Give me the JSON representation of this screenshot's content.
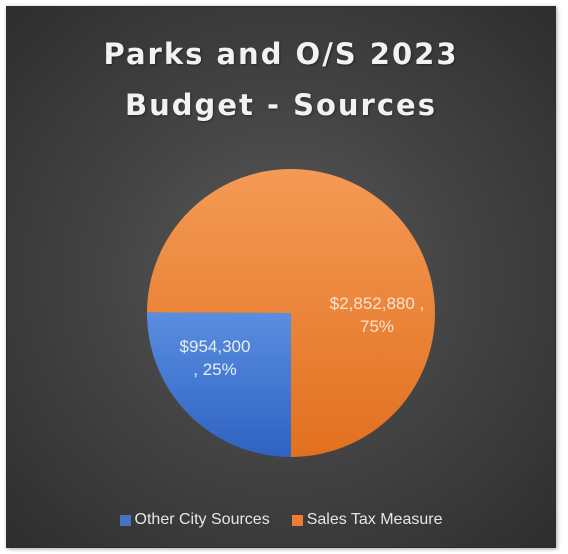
{
  "chart_data": {
    "type": "pie",
    "title": "Parks and O/S 2023 Budget - Sources",
    "title_lines": [
      "Parks and O/S 2023",
      "Budget - Sources"
    ],
    "slices": [
      {
        "name": "Other City Sources",
        "value": 954300,
        "percent": 25,
        "color": "#4472c4",
        "label_lines": [
          "$954,300",
          ", 25%"
        ]
      },
      {
        "name": "Sales Tax Measure",
        "value": 2852880,
        "percent": 75,
        "color": "#ed7d31",
        "label_lines": [
          "$2,852,880 ,",
          "75%"
        ]
      }
    ],
    "legend_position": "bottom"
  }
}
